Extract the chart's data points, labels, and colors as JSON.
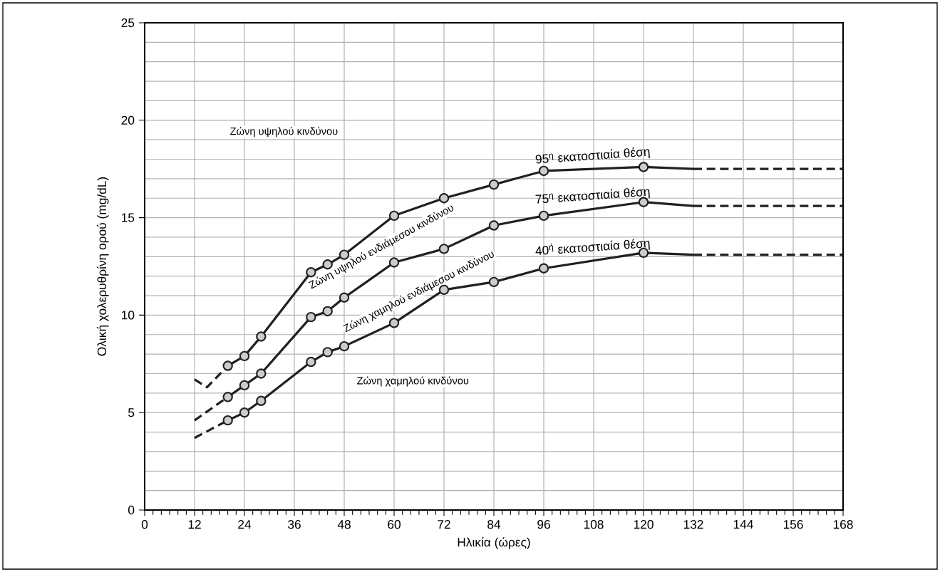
{
  "chart_data": {
    "type": "line",
    "xlabel": "Ηλικία (ώρες)",
    "ylabel": "Ολική χολερυθρίνη ορού (mg/dL)",
    "xlim": [
      0,
      168
    ],
    "ylim": [
      0,
      25
    ],
    "xticks": [
      0,
      12,
      24,
      36,
      48,
      60,
      72,
      84,
      96,
      108,
      120,
      132,
      144,
      156,
      168
    ],
    "yticks": [
      0,
      5,
      10,
      15,
      20,
      25
    ],
    "grid": true,
    "series": [
      {
        "name": "95$^{η}$ εκατοστιαία θέση",
        "color": "#231f20",
        "marker": "circle",
        "line_style": "solid",
        "x": [
          20,
          24,
          28,
          40,
          44,
          48,
          60,
          72,
          84,
          96,
          120
        ],
        "values": [
          7.4,
          7.9,
          8.9,
          12.2,
          12.6,
          13.1,
          15.1,
          16.0,
          16.7,
          17.4,
          17.6
        ]
      },
      {
        "color": "#231f20",
        "marker": "none",
        "line_style": "solid",
        "x": [
          120,
          132
        ],
        "values": [
          17.6,
          17.5
        ]
      },
      {
        "color": "#231f20",
        "marker": "none",
        "line_style": "dashed",
        "x": [
          132,
          168
        ],
        "values": [
          17.5,
          17.5
        ]
      },
      {
        "color": "#231f20",
        "marker": "none",
        "line_style": "dashed",
        "x": [
          12,
          15,
          20
        ],
        "values": [
          6.7,
          6.3,
          7.4
        ]
      },
      {
        "name": "75$^{η}$ εκατοστιαία θέση",
        "color": "#231f20",
        "marker": "circle",
        "line_style": "solid",
        "x": [
          20,
          24,
          28,
          40,
          44,
          48,
          60,
          72,
          84,
          96,
          120
        ],
        "values": [
          5.8,
          6.4,
          7.0,
          9.9,
          10.2,
          10.9,
          12.7,
          13.4,
          14.6,
          15.1,
          15.8
        ]
      },
      {
        "color": "#231f20",
        "marker": "none",
        "line_style": "solid",
        "x": [
          120,
          132
        ],
        "values": [
          15.8,
          15.6
        ]
      },
      {
        "color": "#231f20",
        "marker": "none",
        "line_style": "dashed",
        "x": [
          132,
          168
        ],
        "values": [
          15.6,
          15.6
        ]
      },
      {
        "color": "#231f20",
        "marker": "none",
        "line_style": "dashed",
        "x": [
          12,
          20
        ],
        "values": [
          4.6,
          5.8
        ]
      },
      {
        "name": "40$^{ή}$ εκατοστιαία θέση",
        "color": "#231f20",
        "marker": "circle",
        "line_style": "solid",
        "x": [
          20,
          24,
          28,
          40,
          44,
          48,
          60,
          72,
          84,
          96,
          120
        ],
        "values": [
          4.6,
          5.0,
          5.6,
          7.6,
          8.1,
          8.4,
          9.6,
          11.3,
          11.7,
          12.4,
          13.2
        ]
      },
      {
        "color": "#231f20",
        "marker": "none",
        "line_style": "solid",
        "x": [
          120,
          132
        ],
        "values": [
          13.2,
          13.1
        ]
      },
      {
        "color": "#231f20",
        "marker": "none",
        "line_style": "dashed",
        "x": [
          132,
          168
        ],
        "values": [
          13.1,
          13.1
        ]
      },
      {
        "color": "#231f20",
        "marker": "none",
        "line_style": "dashed",
        "x": [
          12,
          20
        ],
        "values": [
          3.7,
          4.6
        ]
      }
    ],
    "annotations": [
      "Ζώνη υψηλού κινδύνου",
      "Ζώνη υψηλού ενδιάμεσου κινδύνου",
      "Ζώνη χαμηλού ενδιάμεσου κινδύνου",
      "Ζώνη χαμηλού κινδύνου"
    ]
  }
}
